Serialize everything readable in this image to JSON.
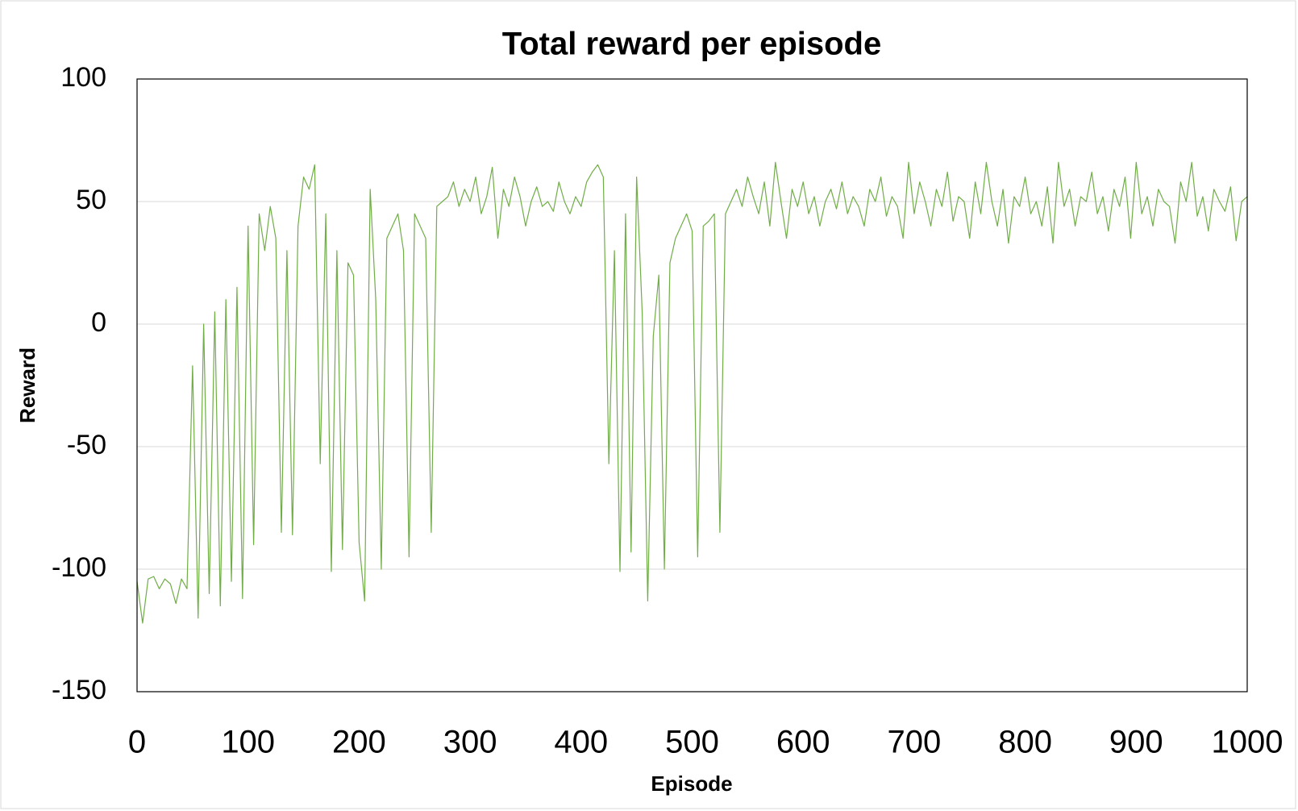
{
  "chart_data": {
    "type": "line",
    "title": "Total reward per episode",
    "x_label": "Episode",
    "y_label": "Reward",
    "x": [
      0,
      5,
      10,
      15,
      20,
      25,
      30,
      35,
      40,
      45,
      50,
      55,
      60,
      65,
      70,
      75,
      80,
      85,
      90,
      95,
      100,
      105,
      110,
      115,
      120,
      125,
      130,
      135,
      140,
      145,
      150,
      155,
      160,
      165,
      170,
      175,
      180,
      185,
      190,
      195,
      200,
      205,
      210,
      215,
      220,
      225,
      230,
      235,
      240,
      245,
      250,
      255,
      260,
      265,
      270,
      275,
      280,
      285,
      290,
      295,
      300,
      305,
      310,
      315,
      320,
      325,
      330,
      335,
      340,
      345,
      350,
      355,
      360,
      365,
      370,
      375,
      380,
      385,
      390,
      395,
      400,
      405,
      410,
      415,
      420,
      425,
      430,
      435,
      440,
      445,
      450,
      455,
      460,
      465,
      470,
      475,
      480,
      485,
      490,
      495,
      500,
      505,
      510,
      515,
      520,
      525,
      530,
      535,
      540,
      545,
      550,
      555,
      560,
      565,
      570,
      575,
      580,
      585,
      590,
      595,
      600,
      605,
      610,
      615,
      620,
      625,
      630,
      635,
      640,
      645,
      650,
      655,
      660,
      665,
      670,
      675,
      680,
      685,
      690,
      695,
      700,
      705,
      710,
      715,
      720,
      725,
      730,
      735,
      740,
      745,
      750,
      755,
      760,
      765,
      770,
      775,
      780,
      785,
      790,
      795,
      800,
      805,
      810,
      815,
      820,
      825,
      830,
      835,
      840,
      845,
      850,
      855,
      860,
      865,
      870,
      875,
      880,
      885,
      890,
      895,
      900,
      905,
      910,
      915,
      920,
      925,
      930,
      935,
      940,
      945,
      950,
      955,
      960,
      965,
      970,
      975,
      980,
      985,
      990,
      995,
      1000
    ],
    "series": [
      {
        "name": "Reward",
        "color": "#70ad47",
        "values": [
          -105,
          -122,
          -104,
          -103,
          -108,
          -104,
          -106,
          -114,
          -104,
          -108,
          -17,
          -120,
          0,
          -110,
          5,
          -115,
          10,
          -105,
          15,
          -112,
          40,
          -90,
          45,
          30,
          48,
          35,
          -85,
          30,
          -86,
          40,
          60,
          55,
          65,
          -57,
          45,
          -101,
          30,
          -92,
          25,
          20,
          -89,
          -113,
          55,
          10,
          -100,
          35,
          40,
          45,
          30,
          -95,
          45,
          40,
          35,
          -85,
          48,
          50,
          52,
          58,
          48,
          55,
          50,
          60,
          45,
          52,
          64,
          35,
          55,
          48,
          60,
          52,
          40,
          50,
          56,
          48,
          50,
          46,
          58,
          50,
          45,
          52,
          48,
          58,
          62,
          65,
          60,
          -57,
          30,
          -101,
          45,
          -93,
          60,
          5,
          -113,
          -5,
          20,
          -100,
          25,
          35,
          40,
          45,
          38,
          -95,
          40,
          42,
          45,
          -85,
          45,
          50,
          55,
          48,
          60,
          52,
          45,
          58,
          40,
          66,
          50,
          35,
          55,
          48,
          58,
          45,
          52,
          40,
          50,
          55,
          47,
          58,
          45,
          52,
          48,
          40,
          55,
          50,
          60,
          44,
          52,
          48,
          35,
          66,
          45,
          58,
          50,
          40,
          55,
          48,
          62,
          42,
          52,
          50,
          35,
          58,
          45,
          66,
          50,
          40,
          55,
          33,
          52,
          48,
          60,
          45,
          50,
          40,
          56,
          33,
          66,
          48,
          55,
          40,
          52,
          50,
          62,
          45,
          52,
          38,
          55,
          48,
          60,
          35,
          66,
          45,
          52,
          40,
          55,
          50,
          48,
          33,
          58,
          50,
          66,
          44,
          52,
          38,
          55,
          50,
          46,
          56,
          34,
          50,
          52
        ]
      }
    ],
    "xlim": [
      0,
      1000
    ],
    "xticks": [
      0,
      100,
      200,
      300,
      400,
      500,
      600,
      700,
      800,
      900,
      1000
    ],
    "ylim": [
      -150,
      100
    ],
    "yticks": [
      -150,
      -100,
      -50,
      0,
      50,
      100
    ],
    "grid": true
  }
}
